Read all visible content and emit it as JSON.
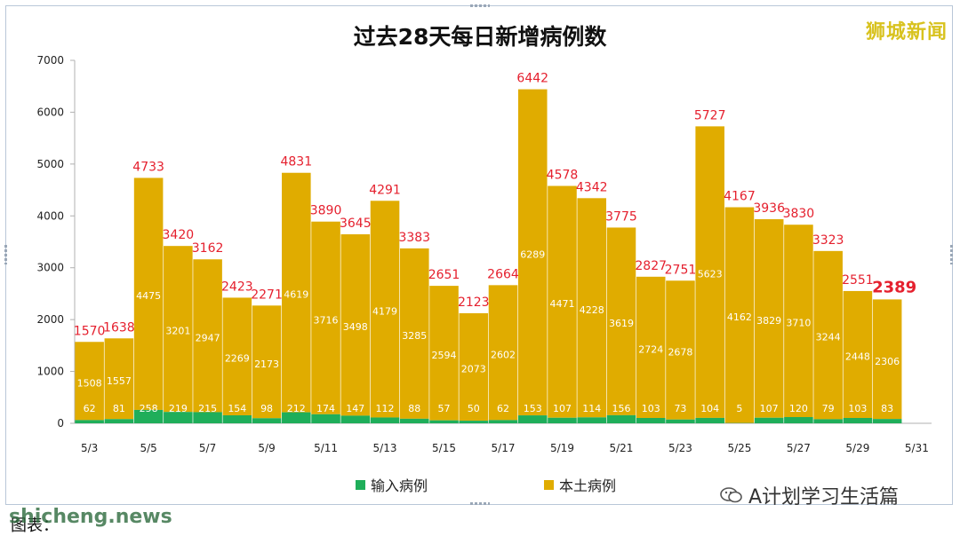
{
  "brand": "狮城新闻",
  "watermark": "shicheng.news",
  "footer": {
    "caption": "图表：",
    "wechat_account": "A计划学习生活篇"
  },
  "colors": {
    "imported": "#1fae5a",
    "local": "#e0ac00",
    "total_label": "#e5202e",
    "axis_text": "#222222"
  },
  "chart_data": {
    "type": "bar",
    "stacked": true,
    "title": "过去28天每日新增病例数",
    "xlabel": "",
    "ylabel": "",
    "ylim": [
      0,
      7000
    ],
    "yticks": [
      "0",
      "1000",
      "2000",
      "3000",
      "4000",
      "5000",
      "6000",
      "7000"
    ],
    "grid": false,
    "legend_position": "bottom",
    "categories": [
      "5/3",
      "5/4",
      "5/5",
      "5/6",
      "5/7",
      "5/8",
      "5/9",
      "5/10",
      "5/11",
      "5/12",
      "5/13",
      "5/14",
      "5/15",
      "5/16",
      "5/17",
      "5/18",
      "5/19",
      "5/20",
      "5/21",
      "5/22",
      "5/23",
      "5/24",
      "5/25",
      "5/26",
      "5/27",
      "5/28",
      "5/29",
      "5/30",
      "5/31"
    ],
    "x_tick_labels": [
      "5/3",
      "",
      "5/5",
      "",
      "5/7",
      "",
      "5/9",
      "",
      "5/11",
      "",
      "5/13",
      "",
      "5/15",
      "",
      "5/17",
      "",
      "5/19",
      "",
      "5/21",
      "",
      "5/23",
      "",
      "5/25",
      "",
      "5/27",
      "",
      "5/29",
      "",
      "5/31"
    ],
    "series": [
      {
        "name": "输入病例",
        "values": [
          62,
          81,
          258,
          219,
          215,
          154,
          98,
          212,
          174,
          147,
          112,
          88,
          57,
          50,
          62,
          153,
          107,
          114,
          156,
          103,
          73,
          104,
          5,
          107,
          120,
          79,
          103,
          83,
          null
        ]
      },
      {
        "name": "本土病例",
        "values": [
          1508,
          1557,
          4475,
          3201,
          2947,
          2269,
          2173,
          4619,
          3716,
          3498,
          4179,
          3285,
          2594,
          2073,
          2602,
          6289,
          4471,
          4228,
          3619,
          2724,
          2678,
          5623,
          4162,
          3829,
          3710,
          3244,
          2448,
          2306,
          null
        ]
      }
    ],
    "totals": [
      1570,
      1638,
      4733,
      3420,
      3162,
      2423,
      2271,
      4831,
      3890,
      3645,
      4291,
      3383,
      2651,
      2123,
      2664,
      6442,
      4578,
      4342,
      3775,
      2827,
      2751,
      5727,
      4167,
      3936,
      3830,
      3323,
      2551,
      2389,
      null
    ]
  }
}
